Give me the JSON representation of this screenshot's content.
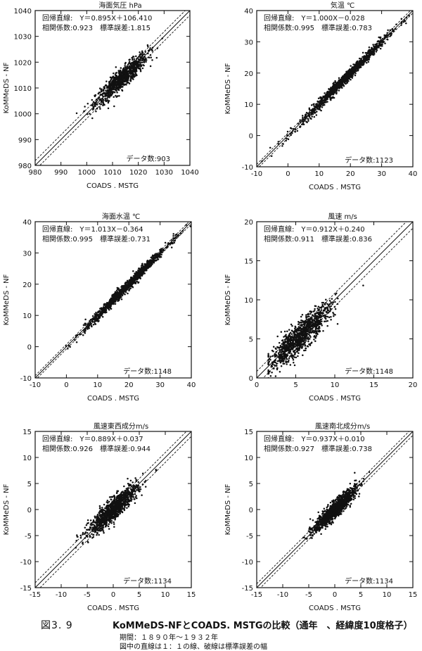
{
  "chart_data": [
    {
      "type": "scatter",
      "title": "海面気圧 hPa",
      "xlabel": "COADS . MSTG",
      "ylabel": "KoMMeDS - NF",
      "xlim": [
        980,
        1040
      ],
      "ylim": [
        980,
        1040
      ],
      "xticks": [
        990,
        1000,
        1010,
        1020,
        1030,
        1040
      ],
      "yticks": [
        990,
        1000,
        1010,
        1020,
        1030,
        1040
      ],
      "tick_labels": [
        "980",
        "990",
        "1000",
        "1010",
        "1020",
        "1030",
        "1040"
      ],
      "regression": {
        "slope": 0.895,
        "intercept": 106.41
      },
      "regression_text": "回帰直線:　Y＝0.895X＋106.410",
      "stats_text": "相関係数:0.923　標準誤差:1.815",
      "std_error": 1.815,
      "count_text": "データ数:903",
      "cloud": {
        "x_mean": 1013.5,
        "x_sd": 5,
        "n": 903
      }
    },
    {
      "type": "scatter",
      "title": "気温 ℃",
      "xlabel": "COADS . MSTG",
      "ylabel": "KoMMeDS - NF",
      "xlim": [
        -10,
        40
      ],
      "ylim": [
        -10,
        40
      ],
      "xticks": [
        0,
        10,
        20,
        30,
        40
      ],
      "yticks": [
        0,
        10,
        20,
        30,
        40
      ],
      "tick_labels": [
        "-10",
        "0",
        "10",
        "20",
        "30",
        "40"
      ],
      "regression": {
        "slope": 1.0,
        "intercept": -0.028
      },
      "regression_text": "回帰直線:　Y＝1.000X－0.028",
      "stats_text": "相関係数:0.995　標準誤差:0.783",
      "std_error": 0.783,
      "count_text": "データ数:1123",
      "cloud": {
        "x_mean": 18,
        "x_sd": 7,
        "n": 1123
      }
    },
    {
      "type": "scatter",
      "title": "海面水温 ℃",
      "xlabel": "COADS . MSTG",
      "ylabel": "KoMMeDS - NF",
      "xlim": [
        -10,
        40
      ],
      "ylim": [
        -10,
        40
      ],
      "xticks": [
        0,
        10,
        20,
        30,
        40
      ],
      "yticks": [
        0,
        10,
        20,
        30,
        40
      ],
      "tick_labels": [
        "-10",
        "0",
        "10",
        "20",
        "30",
        "40"
      ],
      "regression": {
        "slope": 1.013,
        "intercept": -0.364
      },
      "regression_text": "回帰直線:　Y＝1.013X－0.364",
      "stats_text": "相関係数:0.995　標準誤差:0.731",
      "std_error": 0.731,
      "count_text": "データ数:1148",
      "cloud": {
        "x_mean": 19,
        "x_sd": 6.5,
        "n": 1148
      }
    },
    {
      "type": "scatter",
      "title": "風速 m/s",
      "xlabel": "COADS . MSTG",
      "ylabel": "KoMMeDS - NF",
      "xlim": [
        0,
        20
      ],
      "ylim": [
        0,
        20
      ],
      "xticks": [
        5,
        10,
        15,
        20
      ],
      "yticks": [
        5,
        10,
        15,
        20
      ],
      "tick_labels": [
        "0",
        "5",
        "10",
        "15",
        "20"
      ],
      "regression": {
        "slope": 0.912,
        "intercept": 0.24
      },
      "regression_text": "回帰直線:　Y＝0.912X＋0.240",
      "stats_text": "相関係数:0.911　標準誤差:0.836",
      "std_error": 0.836,
      "count_text": "データ数:1148",
      "cloud": {
        "x_mean": 5.5,
        "x_sd": 1.9,
        "n": 1148
      }
    },
    {
      "type": "scatter",
      "title": "風速東西成分m/s",
      "xlabel": "COADS . MSTG",
      "ylabel": "KoMMeDS - NF",
      "xlim": [
        -15,
        15
      ],
      "ylim": [
        -15,
        15
      ],
      "xticks": [
        -10,
        -5,
        0,
        5,
        10,
        15
      ],
      "yticks": [
        -10,
        -5,
        0,
        5,
        10,
        15
      ],
      "tick_labels": [
        "-15",
        "-10",
        "-5",
        "0",
        "5",
        "10",
        "15"
      ],
      "regression": {
        "slope": 0.889,
        "intercept": 0.037
      },
      "regression_text": "回帰直線:　Y＝0.889X＋0.037",
      "stats_text": "相関係数:0.926　標準誤差:0.944",
      "std_error": 0.944,
      "count_text": "データ数:1134",
      "cloud": {
        "x_mean": 0,
        "x_sd": 2.3,
        "n": 1134
      }
    },
    {
      "type": "scatter",
      "title": "風速南北成分m/s",
      "xlabel": "COADS . MSTG",
      "ylabel": "KoMMeDS - NF",
      "xlim": [
        -15,
        15
      ],
      "ylim": [
        -15,
        15
      ],
      "xticks": [
        -10,
        -5,
        0,
        5,
        10,
        15
      ],
      "yticks": [
        -10,
        -5,
        0,
        5,
        10,
        15
      ],
      "tick_labels": [
        "-15",
        "-10",
        "-5",
        "0",
        "5",
        "10",
        "15"
      ],
      "regression": {
        "slope": 0.937,
        "intercept": 0.01
      },
      "regression_text": "回帰直線:　Y＝0.937X＋0.010",
      "stats_text": "相関係数:0.927　標準誤差:0.738",
      "std_error": 0.738,
      "count_text": "データ数:1134",
      "cloud": {
        "x_mean": 0,
        "x_sd": 2.0,
        "n": 1134
      }
    }
  ],
  "caption": {
    "figure_number": "図3. 9",
    "title": "KoMMeDS-NFとCOADS. MSTGの比較（通年　、経緯度10度格子）",
    "period": "期間：１８９０年～１９３２年",
    "note": "図中の直線は１：１の線、破線は標準誤差の幅"
  }
}
